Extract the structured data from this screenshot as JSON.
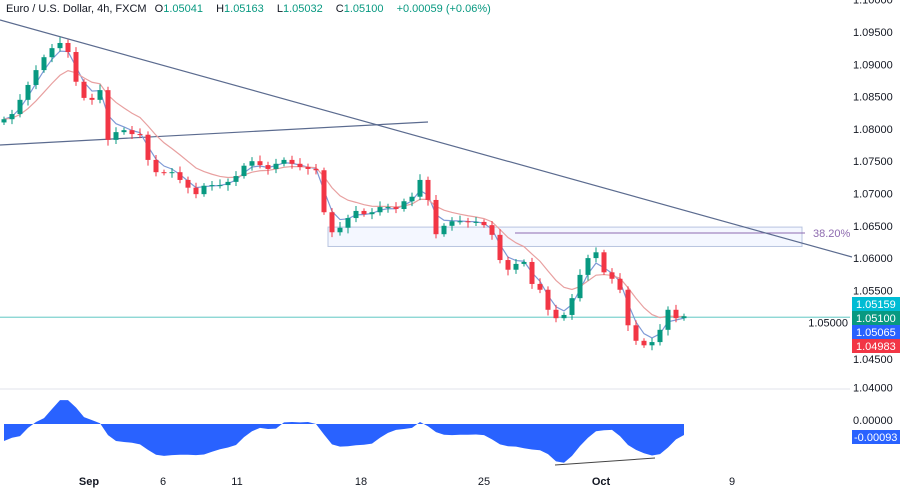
{
  "header": {
    "symbol": "Euro / U.S. Dollar, 4h, FXCM",
    "open_label": "O",
    "open": "1.05041",
    "high_label": "H",
    "high": "1.05163",
    "low_label": "L",
    "low": "1.05032",
    "close_label": "C",
    "close": "1.05100",
    "change": "+0.00059 (+0.06%)"
  },
  "colors": {
    "up": "#089981",
    "down": "#f23645",
    "fast_ma": "#7e9ad6",
    "slow_ma": "#e8a0a0",
    "trendline": "#5b6b8f",
    "oscillator": "#2962ff",
    "fib": "#8e6bb0",
    "price_line": "#7fd3cf",
    "label_cyan": "#00bcd4",
    "label_green": "#089981",
    "label_blue": "#2962ff",
    "label_red": "#f23645"
  },
  "chart_data": [
    {
      "type": "candlestick",
      "ylim": [
        1.04,
        1.1
      ],
      "y_ticks": [
        "1.10000",
        "1.09500",
        "1.09000",
        "1.08500",
        "1.08000",
        "1.07500",
        "1.07000",
        "1.06500",
        "1.06000",
        "1.05500",
        "1.05000",
        "1.04500",
        "1.04000"
      ],
      "x_ticks": [
        "Sep",
        "6",
        "11",
        "18",
        "25",
        "Oct",
        "9"
      ],
      "first_open": 1.081,
      "close": [
        1.0815,
        1.0823,
        1.0845,
        1.0868,
        1.0891,
        1.0911,
        1.0925,
        1.0933,
        1.0919,
        1.0873,
        1.0848,
        1.0845,
        1.086,
        1.0783,
        1.0795,
        1.0798,
        1.0792,
        1.0791,
        1.0752,
        1.0733,
        1.0732,
        1.0733,
        1.0721,
        1.0709,
        1.0699,
        1.0712,
        1.0713,
        1.0713,
        1.0718,
        1.0727,
        1.0743,
        1.075,
        1.0744,
        1.0738,
        1.0746,
        1.0752,
        1.0746,
        1.0741,
        1.0738,
        1.0736,
        1.0671,
        1.064,
        1.0647,
        1.0662,
        1.0673,
        1.0668,
        1.0671,
        1.0679,
        1.0679,
        1.0676,
        1.0688,
        1.0695,
        1.0721,
        1.069,
        1.0637,
        1.065,
        1.0657,
        1.0657,
        1.0656,
        1.0656,
        1.0651,
        1.0636,
        1.0597,
        1.0582,
        1.0591,
        1.0594,
        1.056,
        1.0551,
        1.052,
        1.0507,
        1.0512,
        1.0538,
        1.0574,
        1.06,
        1.0609,
        1.0578,
        1.0568,
        1.0551,
        1.0496,
        1.0472,
        1.0465,
        1.047,
        1.0489,
        1.052,
        1.0507,
        1.051
      ],
      "fib_level": "38.20%",
      "zone": [
        1.0618,
        1.0648
      ],
      "price_labels": [
        {
          "value": "1.05159",
          "color": "label_cyan"
        },
        {
          "value": "1.05100",
          "color": "label_green"
        },
        {
          "value": "1.05065",
          "color": "label_blue"
        },
        {
          "value": "1.04983",
          "color": "label_red"
        }
      ],
      "horizontal_line": 1.051
    },
    {
      "type": "area",
      "zero_label": "0.00000",
      "last_label": "-0.00093",
      "values": [
        -0.00144,
        -0.00116,
        -0.00102,
        -0.00033,
        0.00017,
        0.0005,
        0.00127,
        0.00202,
        0.00202,
        0.00139,
        0.00058,
        0.00033,
        6e-05,
        -0.00094,
        -0.00144,
        -0.00152,
        -0.00158,
        -0.00172,
        -0.00219,
        -0.0026,
        -0.00269,
        -0.00263,
        -0.0026,
        -0.0026,
        -0.00263,
        -0.00258,
        -0.00235,
        -0.00213,
        -0.00199,
        -0.00177,
        -0.00111,
        -0.00061,
        -0.00033,
        -0.00042,
        -0.00039,
        0.00014,
        0.00017,
        0.00014,
        0.00017,
        0,
        -0.00089,
        -0.00172,
        -0.00191,
        -0.00188,
        -0.0018,
        -0.00175,
        -0.00166,
        -0.00116,
        -0.00075,
        -0.0005,
        -0.00042,
        -0.00033,
        0.00017,
        -0.00019,
        -0.00069,
        -0.00091,
        -0.00094,
        -0.00091,
        -0.00091,
        -0.00089,
        -0.00094,
        -0.0013,
        -0.00172,
        -0.00188,
        -0.00191,
        -0.00205,
        -0.00216,
        -0.00222,
        -0.00255,
        -0.00316,
        -0.00327,
        -0.00269,
        -0.00186,
        -0.00116,
        -0.00061,
        -0.00053,
        -0.0005,
        -0.00102,
        -0.00177,
        -0.00219,
        -0.00247,
        -0.00266,
        -0.00255,
        -0.00199,
        -0.0013,
        -0.00093
      ]
    }
  ]
}
